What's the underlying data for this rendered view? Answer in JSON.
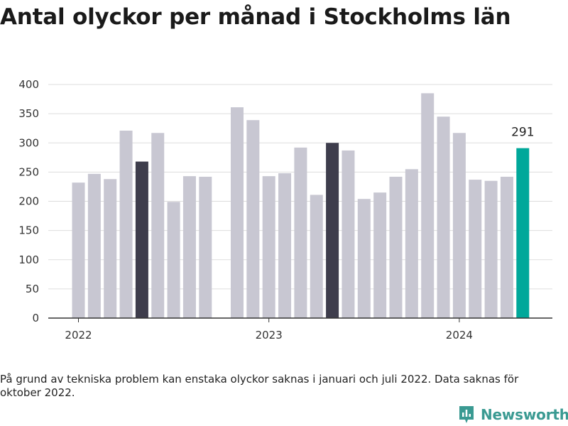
{
  "title": "Antal olyckor per månad i Stockholms län",
  "footnote": "På grund av tekniska problem kan enstaka olyckor saknas i januari och juli 2022. Data saknas för oktober 2022.",
  "brand": {
    "name": "Newsworthy",
    "icon": "newsworthy-logo-icon",
    "color": "#3a9a92"
  },
  "colors": {
    "default": "#c8c7d2",
    "highlight": "#3e3d4c",
    "latest": "#00a89a",
    "grid": "#dddddd",
    "axis": "#333333"
  },
  "chart_data": {
    "type": "bar",
    "title": "Antal olyckor per månad i Stockholms län",
    "xlabel": "",
    "ylabel": "",
    "ylim": [
      0,
      400
    ],
    "y_ticks": [
      0,
      50,
      100,
      150,
      200,
      250,
      300,
      350,
      400
    ],
    "x_ticks": [
      {
        "label": "2022",
        "at": "2022-01"
      },
      {
        "label": "2023",
        "at": "2023-01"
      },
      {
        "label": "2024",
        "at": "2024-01"
      }
    ],
    "grid": true,
    "categories": [
      "2022-01",
      "2022-02",
      "2022-03",
      "2022-04",
      "2022-05",
      "2022-06",
      "2022-07",
      "2022-08",
      "2022-09",
      "2022-10",
      "2022-11",
      "2022-12",
      "2023-01",
      "2023-02",
      "2023-03",
      "2023-04",
      "2023-05",
      "2023-06",
      "2023-07",
      "2023-08",
      "2023-09",
      "2023-10",
      "2023-11",
      "2023-12",
      "2024-01",
      "2024-02",
      "2024-03",
      "2024-04",
      "2024-05",
      "2024-06"
    ],
    "values": [
      232,
      247,
      238,
      321,
      268,
      317,
      199,
      243,
      242,
      null,
      361,
      339,
      243,
      248,
      292,
      211,
      300,
      287,
      204,
      215,
      242,
      255,
      385,
      345,
      317,
      237,
      235,
      242,
      291,
      null
    ],
    "highlight": [
      "2022-05",
      "2023-05"
    ],
    "latest": "2024-05",
    "data_labels": [
      {
        "category": "2024-05",
        "text": "291"
      }
    ]
  }
}
